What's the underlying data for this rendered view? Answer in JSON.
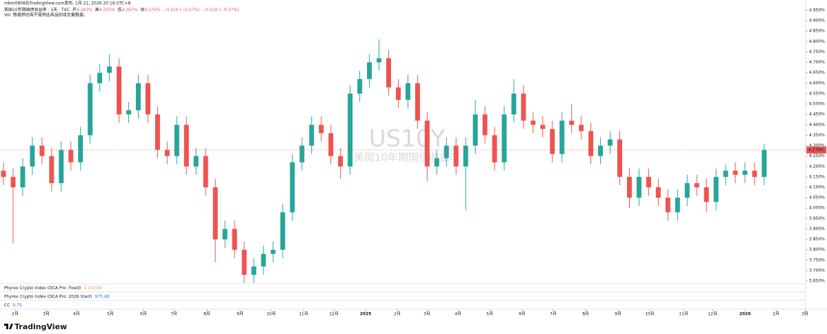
{
  "header": {
    "publisher": "mbm0808在TradingView.com发布, 1月 21, 2026 20:16 UTC+8",
    "symbol": "美国10年期国债收益率 · 1天 · TVC",
    "open_label": "开",
    "open": "4.283%",
    "high_label": "高",
    "high": "4.293%",
    "low_label": "低",
    "low": "4.267%",
    "close_label": "收",
    "close": "4.279%",
    "change": "−0.016 (−0.37%)",
    "change2": "−0.016 (−0.37%)",
    "volume_note": "Vol: 数据供应商不提供此商品的成交量数据。"
  },
  "watermark": {
    "ticker": "US10Y",
    "name": "美国10年期国债收益率"
  },
  "indicators": [
    {
      "name": "Phyrex Crypto Index (DCA Pro: Fixed)",
      "value": "1,153.65",
      "color": "#f7931a"
    },
    {
      "name": "Phyrex Crypto Index (DCA Pro: 2026 Start)",
      "value": "975.46",
      "color": "#2962ff"
    },
    {
      "name": "CC",
      "value": "0.75",
      "color": "#2962ff"
    }
  ],
  "logo": "TradingView",
  "chart_data": {
    "type": "candlestick",
    "up_color": "#26a69a",
    "down_color": "#ef5350",
    "open": [
      4.18,
      4.15,
      4.1,
      4.2,
      4.3,
      4.25,
      4.12,
      4.28,
      4.22,
      4.35,
      4.6,
      4.65,
      4.68,
      4.45,
      4.47,
      4.6,
      4.45,
      4.28,
      4.25,
      4.4,
      4.2,
      4.25,
      4.1,
      3.85,
      3.9,
      3.8,
      3.68,
      3.72,
      3.78,
      3.8,
      3.98,
      4.22,
      4.3,
      4.4,
      4.36,
      4.25,
      4.2,
      4.55,
      4.62,
      4.7,
      4.72,
      4.58,
      4.52,
      4.6,
      4.42,
      4.2,
      4.24,
      4.3,
      4.2,
      4.3,
      4.45,
      4.35,
      4.22,
      4.45,
      4.55,
      4.42,
      4.4,
      4.38,
      4.26,
      4.42,
      4.4,
      4.37,
      4.25,
      4.3,
      4.33,
      4.15,
      4.05,
      4.15,
      4.1,
      4.05,
      3.98,
      4.05,
      4.12,
      4.1,
      4.03,
      4.15,
      4.18,
      4.16,
      4.18,
      4.15
    ],
    "high": [
      4.22,
      4.19,
      4.24,
      4.34,
      4.34,
      4.29,
      4.32,
      4.32,
      4.39,
      4.64,
      4.69,
      4.74,
      4.72,
      4.51,
      4.64,
      4.64,
      4.49,
      4.32,
      4.44,
      4.44,
      4.29,
      4.29,
      4.14,
      3.94,
      3.94,
      3.84,
      3.76,
      3.82,
      3.84,
      4.02,
      4.26,
      4.34,
      4.44,
      4.44,
      4.4,
      4.29,
      4.59,
      4.66,
      4.74,
      4.81,
      4.76,
      4.62,
      4.64,
      4.64,
      4.46,
      4.28,
      4.34,
      4.34,
      4.34,
      4.52,
      4.49,
      4.39,
      4.49,
      4.62,
      4.59,
      4.46,
      4.44,
      4.42,
      4.46,
      4.5,
      4.44,
      4.41,
      4.34,
      4.37,
      4.37,
      4.19,
      4.19,
      4.19,
      4.14,
      4.09,
      4.09,
      4.16,
      4.16,
      4.14,
      4.19,
      4.21,
      4.22,
      4.22,
      4.22,
      4.31
    ],
    "low": [
      4.11,
      3.83,
      4.06,
      4.16,
      4.21,
      4.08,
      4.08,
      4.18,
      4.18,
      4.31,
      4.56,
      4.61,
      4.41,
      4.41,
      4.43,
      4.41,
      4.24,
      4.21,
      4.21,
      4.16,
      4.16,
      4.06,
      3.74,
      3.81,
      3.76,
      3.64,
      3.64,
      3.68,
      3.74,
      3.76,
      3.94,
      4.18,
      4.26,
      4.32,
      4.21,
      4.14,
      4.16,
      4.51,
      4.58,
      4.66,
      4.54,
      4.48,
      4.48,
      4.38,
      4.13,
      4.16,
      4.2,
      4.16,
      3.99,
      4.26,
      4.31,
      4.18,
      4.18,
      4.41,
      4.38,
      4.36,
      4.34,
      4.22,
      4.22,
      4.36,
      4.33,
      4.21,
      4.21,
      4.26,
      4.11,
      4.0,
      4.01,
      4.06,
      4.01,
      3.94,
      3.94,
      4.01,
      4.06,
      3.98,
      3.99,
      4.11,
      4.12,
      4.12,
      4.11,
      4.11
    ],
    "close": [
      4.15,
      4.1,
      4.2,
      4.3,
      4.25,
      4.12,
      4.28,
      4.22,
      4.35,
      4.6,
      4.65,
      4.68,
      4.45,
      4.47,
      4.6,
      4.45,
      4.28,
      4.25,
      4.4,
      4.2,
      4.25,
      4.1,
      3.85,
      3.9,
      3.8,
      3.68,
      3.72,
      3.78,
      3.8,
      3.98,
      4.22,
      4.3,
      4.4,
      4.36,
      4.25,
      4.2,
      4.55,
      4.62,
      4.7,
      4.72,
      4.58,
      4.52,
      4.6,
      4.42,
      4.2,
      4.24,
      4.3,
      4.2,
      4.3,
      4.45,
      4.35,
      4.22,
      4.45,
      4.55,
      4.42,
      4.4,
      4.38,
      4.26,
      4.42,
      4.4,
      4.37,
      4.25,
      4.3,
      4.33,
      4.15,
      4.05,
      4.15,
      4.1,
      4.05,
      3.98,
      4.05,
      4.12,
      4.1,
      4.03,
      4.15,
      4.18,
      4.16,
      4.18,
      4.15,
      4.28
    ],
    "last_price": {
      "value": 4.279,
      "label": "4.279%"
    },
    "xlim": [
      -0.36,
      83.3
    ],
    "xticks": [
      {
        "value": 1.22,
        "label": "2月"
      },
      {
        "value": 4.44,
        "label": "3月"
      },
      {
        "value": 7.59,
        "label": "4月"
      },
      {
        "value": 11.1,
        "label": "5月"
      },
      {
        "value": 14.54,
        "label": "6月"
      },
      {
        "value": 17.69,
        "label": "7月"
      },
      {
        "value": 21.13,
        "label": "8月"
      },
      {
        "value": 24.57,
        "label": "9月"
      },
      {
        "value": 27.79,
        "label": "10月"
      },
      {
        "value": 31.16,
        "label": "11月"
      },
      {
        "value": 34.31,
        "label": "12月"
      },
      {
        "value": 37.61,
        "label": "2025"
      },
      {
        "value": 40.9,
        "label": "2月"
      },
      {
        "value": 43.98,
        "label": "3月"
      },
      {
        "value": 47.21,
        "label": "4月"
      },
      {
        "value": 50.5,
        "label": "5月"
      },
      {
        "value": 53.87,
        "label": "6月"
      },
      {
        "value": 57.09,
        "label": "7月"
      },
      {
        "value": 60.46,
        "label": "8月"
      },
      {
        "value": 63.83,
        "label": "9月"
      },
      {
        "value": 67.12,
        "label": "10月"
      },
      {
        "value": 70.63,
        "label": "11月"
      },
      {
        "value": 73.64,
        "label": "12月"
      },
      {
        "value": 77.01,
        "label": "2026"
      },
      {
        "value": 80.23,
        "label": "2月"
      },
      {
        "value": 83.24,
        "label": "3月"
      }
    ],
    "ylim": [
      3.637,
      4.973
    ],
    "yticks": [
      {
        "value": 3.65,
        "label": "3.650%"
      },
      {
        "value": 3.7,
        "label": "3.700%"
      },
      {
        "value": 3.75,
        "label": "3.750%"
      },
      {
        "value": 3.8,
        "label": "3.800%"
      },
      {
        "value": 3.85,
        "label": "3.850%"
      },
      {
        "value": 3.9,
        "label": "3.900%"
      },
      {
        "value": 3.95,
        "label": "3.950%"
      },
      {
        "value": 4.0,
        "label": "4.000%"
      },
      {
        "value": 4.05,
        "label": "4.050%"
      },
      {
        "value": 4.1,
        "label": "4.100%"
      },
      {
        "value": 4.15,
        "label": "4.150%"
      },
      {
        "value": 4.2,
        "label": "4.200%"
      },
      {
        "value": 4.25,
        "label": "4.250%"
      },
      {
        "value": 4.3,
        "label": "4.300%"
      },
      {
        "value": 4.35,
        "label": "4.350%"
      },
      {
        "value": 4.4,
        "label": "4.400%"
      },
      {
        "value": 4.45,
        "label": "4.450%"
      },
      {
        "value": 4.5,
        "label": "4.500%"
      },
      {
        "value": 4.55,
        "label": "4.550%"
      },
      {
        "value": 4.6,
        "label": "4.600%"
      },
      {
        "value": 4.65,
        "label": "4.650%"
      },
      {
        "value": 4.7,
        "label": "4.700%"
      },
      {
        "value": 4.75,
        "label": "4.750%"
      },
      {
        "value": 4.8,
        "label": "4.800%"
      },
      {
        "value": 4.85,
        "label": "4.850%"
      },
      {
        "value": 4.9,
        "label": "4.900%"
      },
      {
        "value": 4.95,
        "label": "4.950%"
      }
    ],
    "grid": false
  }
}
